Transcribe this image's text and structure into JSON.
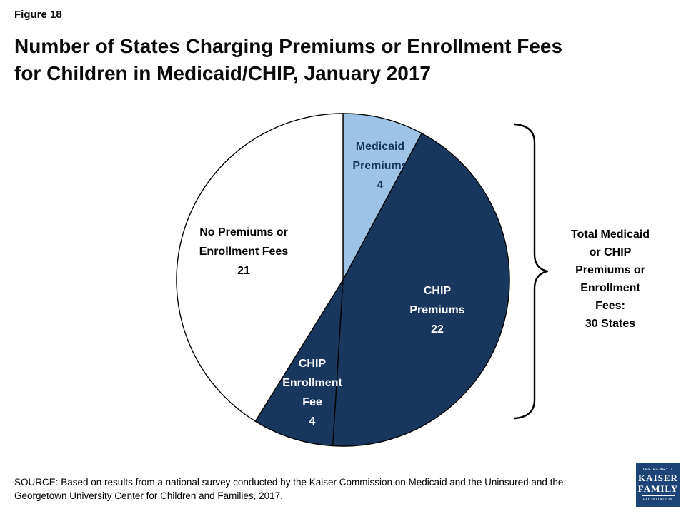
{
  "figure_label": "Figure 18",
  "title_lines": [
    "Number of States Charging Premiums or Enrollment Fees",
    "for Children in Medicaid/CHIP, January 2017"
  ],
  "colors": {
    "dark_navy": "#17375e",
    "light_blue": "#9dc3e6",
    "logo_navy": "#1d4477"
  },
  "chart_data": {
    "type": "pie",
    "title": "Number of States Charging Premiums or Enrollment Fees for Children in Medicaid/CHIP, January 2017",
    "total": 51,
    "start_angle": "12 o'clock",
    "direction": "clockwise",
    "slices": [
      {
        "id": "medicaid-premiums",
        "label": "Medicaid Premiums",
        "value": 4,
        "color": "#9dc3e6",
        "label_lines": [
          "Medicaid",
          "Premiums",
          "4"
        ]
      },
      {
        "id": "chip-premiums",
        "label": "CHIP Premiums",
        "value": 22,
        "color": "#17375e",
        "label_lines": [
          "CHIP",
          "Premiums",
          "22"
        ]
      },
      {
        "id": "chip-enrollment-fee",
        "label": "CHIP Enrollment Fee",
        "value": 4,
        "color": "#17375e",
        "label_lines": [
          "CHIP",
          "Enrollment",
          "Fee",
          "4"
        ]
      },
      {
        "id": "no-premiums",
        "label": "No Premiums or Enrollment Fees",
        "value": 21,
        "color": "#ffffff",
        "label_lines": [
          "No Premiums or",
          "Enrollment Fees",
          "21"
        ]
      }
    ],
    "annotation": {
      "text": "Total Medicaid or CHIP Premiums or Enrollment Fees: 30 States",
      "lines": [
        "Total Medicaid",
        "or CHIP",
        "Premiums or",
        "Enrollment",
        "Fees:",
        "30 States"
      ]
    },
    "legend": "none",
    "grid": false
  },
  "source": {
    "line1": "SOURCE: Based on results from a national survey conducted by the Kaiser Commission on Medicaid and the Uninsured and the",
    "line2": "Georgetown University Center for Children and Families, 2017."
  },
  "logo": {
    "line1": "THE HENRY J.",
    "line2": "KAISER",
    "line3": "FAMILY",
    "line4": "FOUNDATION"
  }
}
